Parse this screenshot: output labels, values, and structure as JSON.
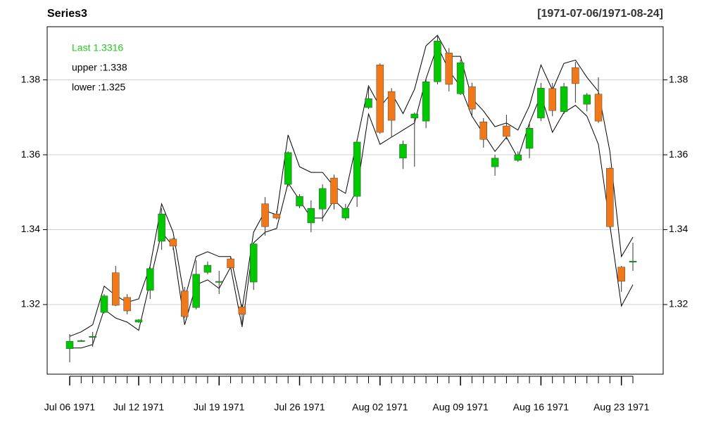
{
  "chart_data": {
    "type": "candlestick",
    "title": "Series3",
    "date_range": "[1971-07-06/1971-08-24]",
    "categories": [
      "Jul 06 1971",
      null,
      null,
      null,
      null,
      null,
      "Jul 12 1971",
      null,
      null,
      null,
      null,
      null,
      null,
      "Jul 19 1971",
      null,
      null,
      null,
      null,
      null,
      null,
      "Jul 26 1971",
      null,
      null,
      null,
      null,
      null,
      null,
      "Aug 02 1971",
      null,
      null,
      null,
      null,
      null,
      null,
      "Aug 09 1971",
      null,
      null,
      null,
      null,
      null,
      null,
      "Aug 16 1971",
      null,
      null,
      null,
      null,
      null,
      null,
      "Aug 23 1971",
      null
    ],
    "open": [
      1.3082,
      1.3104,
      1.3115,
      1.3179,
      1.3285,
      1.3219,
      1.3153,
      1.3238,
      1.3369,
      1.3375,
      1.3236,
      1.3192,
      1.3286,
      1.3262,
      1.3322,
      1.3194,
      1.326,
      1.3469,
      1.3442,
      1.3521,
      1.3463,
      1.3418,
      1.3455,
      1.3538,
      1.3431,
      1.3489,
      1.3726,
      1.384,
      1.3769,
      1.3591,
      1.3698,
      1.369,
      1.3795,
      1.3872,
      1.3763,
      1.3782,
      1.3688,
      1.3568,
      1.3677,
      1.3585,
      1.3617,
      1.3698,
      1.3777,
      1.3715,
      1.3833,
      1.3735,
      1.3762,
      1.3564,
      1.33,
      1.3313
    ],
    "high": [
      1.3121,
      1.3106,
      1.3127,
      1.3228,
      1.3303,
      1.3228,
      1.3161,
      1.3305,
      1.3457,
      1.3378,
      1.3247,
      1.3318,
      1.3315,
      1.329,
      1.3328,
      1.32,
      1.3365,
      1.3487,
      1.345,
      1.3609,
      1.3495,
      1.3478,
      1.3521,
      1.3547,
      1.3469,
      1.3641,
      1.3784,
      1.3844,
      1.3778,
      1.3638,
      1.3713,
      1.3803,
      1.3919,
      1.3885,
      1.3854,
      1.3792,
      1.3698,
      1.36,
      1.3707,
      1.3609,
      1.3685,
      1.3792,
      1.3792,
      1.3792,
      1.3848,
      1.3765,
      1.3807,
      1.3566,
      1.3303,
      1.3365
    ],
    "low": [
      1.3046,
      1.3102,
      1.3087,
      1.3176,
      1.3196,
      1.3174,
      1.3151,
      1.3215,
      1.3346,
      1.3346,
      1.3164,
      1.3187,
      1.3281,
      1.3228,
      1.3296,
      1.314,
      1.3239,
      1.3384,
      1.3427,
      1.3515,
      1.3457,
      1.3393,
      1.3422,
      1.3454,
      1.3425,
      1.3461,
      1.3722,
      1.3656,
      1.3647,
      1.3562,
      1.3568,
      1.3671,
      1.3788,
      1.3769,
      1.376,
      1.3703,
      1.3619,
      1.3544,
      1.3641,
      1.3581,
      1.3591,
      1.369,
      1.3703,
      1.3709,
      1.3739,
      1.3716,
      1.3685,
      1.3403,
      1.3234,
      1.329
    ],
    "close": [
      1.3102,
      1.3104,
      1.3115,
      1.3223,
      1.3198,
      1.3183,
      1.3159,
      1.3296,
      1.3442,
      1.3356,
      1.3168,
      1.3281,
      1.3305,
      1.3262,
      1.3298,
      1.3174,
      1.3362,
      1.3408,
      1.3431,
      1.3606,
      1.3489,
      1.3457,
      1.351,
      1.3469,
      1.3457,
      1.3634,
      1.375,
      1.366,
      1.3692,
      1.3628,
      1.3709,
      1.3795,
      1.3904,
      1.3788,
      1.3846,
      1.3722,
      1.3641,
      1.3591,
      1.3649,
      1.36,
      1.3671,
      1.3778,
      1.3718,
      1.3782,
      1.379,
      1.376,
      1.369,
      1.3408,
      1.3262,
      1.3316
    ],
    "upper": [
      1.3115,
      1.3127,
      1.3146,
      1.3249,
      1.3224,
      1.3206,
      1.3215,
      1.3303,
      1.3469,
      1.3393,
      1.3215,
      1.3328,
      1.3341,
      1.3328,
      1.3328,
      1.3187,
      1.3393,
      1.345,
      1.344,
      1.3653,
      1.3568,
      1.3553,
      1.3553,
      1.3515,
      1.3497,
      1.3638,
      1.3784,
      1.3728,
      1.3765,
      1.371,
      1.3775,
      1.3891,
      1.3919,
      1.3863,
      1.3863,
      1.375,
      1.3717,
      1.3675,
      1.3685,
      1.3666,
      1.3731,
      1.384,
      1.3773,
      1.3844,
      1.3853,
      1.3807,
      1.3769,
      1.3609,
      1.3328,
      1.338
    ],
    "lower": [
      1.3084,
      1.3084,
      1.3093,
      1.3187,
      1.3164,
      1.3153,
      1.3131,
      1.3262,
      1.3393,
      1.3356,
      1.3146,
      1.3253,
      1.3266,
      1.3243,
      1.33,
      1.314,
      1.3365,
      1.3393,
      1.3403,
      1.3525,
      1.3479,
      1.3431,
      1.3431,
      1.3479,
      1.345,
      1.3506,
      1.3709,
      1.3628,
      1.3647,
      1.3666,
      1.3685,
      1.3803,
      1.3891,
      1.3825,
      1.3782,
      1.3703,
      1.3656,
      1.3609,
      1.3647,
      1.3591,
      1.3685,
      1.376,
      1.366,
      1.3713,
      1.3732,
      1.3703,
      1.3628,
      1.3412,
      1.3196,
      1.3253
    ],
    "legend": [
      "Last 1.3316",
      "upper :1.338",
      "lower :1.325"
    ],
    "legend_colors": [
      "#22cc22",
      "#000000",
      "#000000"
    ],
    "up_color": "#00c800",
    "down_color": "#f07818",
    "band_color": "#000000",
    "ylim": [
      1.3014,
      1.3942
    ],
    "yticks": [
      1.32,
      1.34,
      1.36,
      1.38
    ],
    "grid": true
  }
}
